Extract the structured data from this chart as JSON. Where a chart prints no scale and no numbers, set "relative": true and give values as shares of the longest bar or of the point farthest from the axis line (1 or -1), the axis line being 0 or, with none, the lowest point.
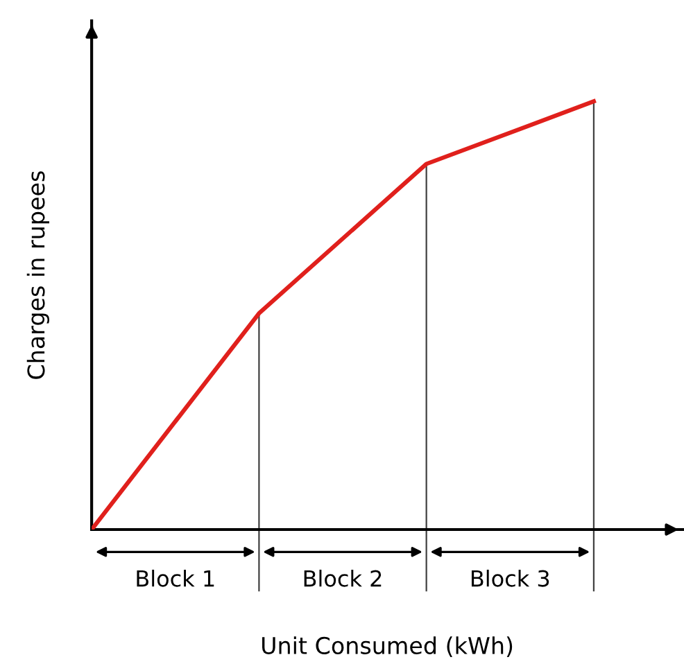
{
  "chart_data": {
    "type": "line",
    "relative": true,
    "xlabel": "Unit Consumed (kWh)",
    "ylabel": "Charges in rupees",
    "categories": [
      null,
      null,
      null,
      null
    ],
    "series": [
      {
        "color": "#e0201c",
        "values": [
          0,
          0.505,
          0.854,
          1
        ]
      }
    ],
    "annotations": [
      "Block 1",
      "Block 2",
      "Block 3"
    ],
    "grid": false,
    "legend": false,
    "marker": "none",
    "line_style": "solid"
  }
}
